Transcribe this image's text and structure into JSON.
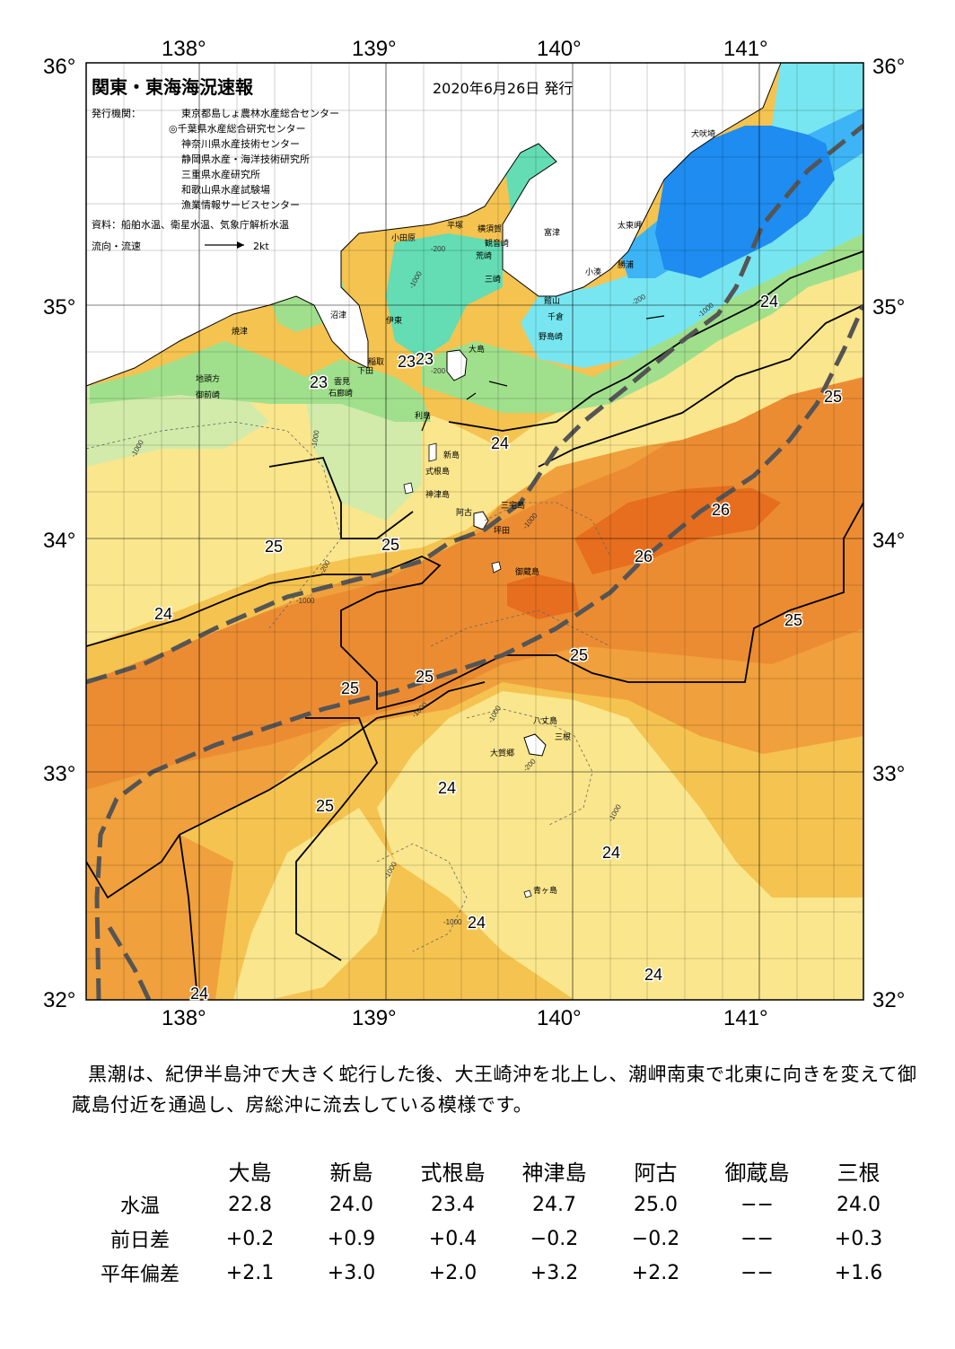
{
  "header": {
    "title": "関東・東海海況速報",
    "date": "2020年6月26日 発行",
    "issuer_label": "発行機関：",
    "issuers": [
      "東京都島しょ農林水産総合センター",
      "◎千葉県水産総合研究センター",
      "神奈川県水産技術センター",
      "静岡県水産・海洋技術研究所",
      "三重県水産研究所",
      "和歌山県水産試験場",
      "漁業情報サービスセンター"
    ],
    "source": "資料：船舶水温、衛星水温、気象庁解析水温",
    "flow_label": "流向・流速",
    "flow_scale": "2kt"
  },
  "axes": {
    "lon_labels": [
      "138°",
      "139°",
      "140°",
      "141°"
    ],
    "lat_labels": [
      "36°",
      "35°",
      "34°",
      "33°",
      "32°"
    ]
  },
  "places": [
    "犬吠埼",
    "太東岬",
    "勝浦",
    "小湊",
    "富津",
    "横須賀",
    "観音崎",
    "平塚",
    "小田原",
    "荒崎",
    "三崎",
    "館山",
    "千倉",
    "野島崎",
    "大島",
    "沼津",
    "伊東",
    "稲取",
    "下田",
    "雲見",
    "石廊崎",
    "焼津",
    "地頭方",
    "御前崎",
    "利島",
    "新島",
    "式根島",
    "神津島",
    "三宅島",
    "阿古",
    "坪田",
    "御蔵島",
    "八丈島",
    "三根",
    "大賀郷",
    "青ヶ島"
  ],
  "isotherm_labels": [
    "23",
    "23",
    "23",
    "24",
    "24",
    "24",
    "24",
    "24",
    "24",
    "25",
    "25",
    "25",
    "25",
    "25",
    "25",
    "25",
    "25",
    "26",
    "26",
    "24",
    "24"
  ],
  "depth_labels": [
    "-200",
    "-1000"
  ],
  "colors": {
    "t19": "#1e8cf0",
    "t20": "#3cb4f5",
    "t21": "#78e6f0",
    "t22": "#64dcb4",
    "t23": "#a0e08c",
    "t235": "#d2ebaa",
    "t24": "#fae68c",
    "t245": "#f5c350",
    "t25": "#f0a03c",
    "t255": "#ec8c32",
    "t26": "#e66e1e",
    "land": "#ffffff",
    "kuroshio": "#555555"
  },
  "summary": "黒潮は、紀伊半島沖で大きく蛇行した後、大王崎沖を北上し、潮岬南東で北東に向きを変えて御蔵島付近を通過し、房総沖に流去している模様です。",
  "table": {
    "columns": [
      "大島",
      "新島",
      "式根島",
      "神津島",
      "阿古",
      "御蔵島",
      "三根"
    ],
    "rows": [
      {
        "label": "水温",
        "values": [
          "22.8",
          "24.0",
          "23.4",
          "24.7",
          "25.0",
          "−−",
          "24.0"
        ]
      },
      {
        "label": "前日差",
        "values": [
          "+0.2",
          "+0.9",
          "+0.4",
          "−0.2",
          "−0.2",
          "−−",
          "+0.3"
        ]
      },
      {
        "label": "平年偏差",
        "values": [
          "+2.1",
          "+3.0",
          "+2.0",
          "+3.2",
          "+2.2",
          "−−",
          "+1.6"
        ]
      }
    ]
  }
}
